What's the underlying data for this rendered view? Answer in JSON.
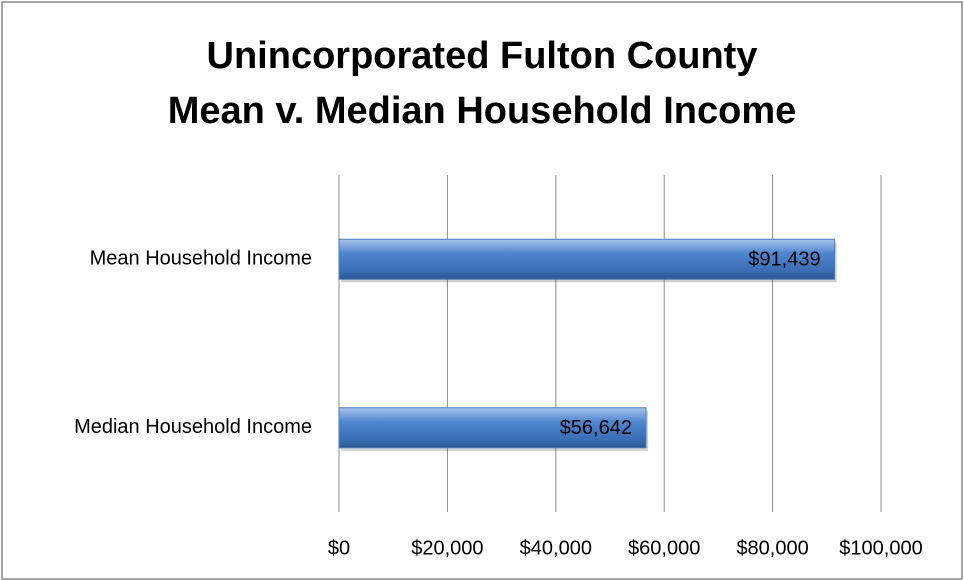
{
  "chart_data": {
    "type": "bar",
    "orientation": "horizontal",
    "title": [
      "Unincorporated Fulton County",
      "Mean v. Median Household Income"
    ],
    "categories": [
      "Mean Household Income",
      "Median Household Income"
    ],
    "values": [
      91439,
      56642
    ],
    "value_labels": [
      "$91,439",
      "$56,642"
    ],
    "color": "#4a7ebb",
    "xlim": [
      0,
      100000
    ],
    "xticks": [
      {
        "value": 0,
        "label": "$0"
      },
      {
        "value": 20000,
        "label": "$20,000"
      },
      {
        "value": 40000,
        "label": "$40,000"
      },
      {
        "value": 60000,
        "label": "$60,000"
      },
      {
        "value": 80000,
        "label": "$80,000"
      },
      {
        "value": 100000,
        "label": "$100,000"
      }
    ],
    "grid": true
  }
}
